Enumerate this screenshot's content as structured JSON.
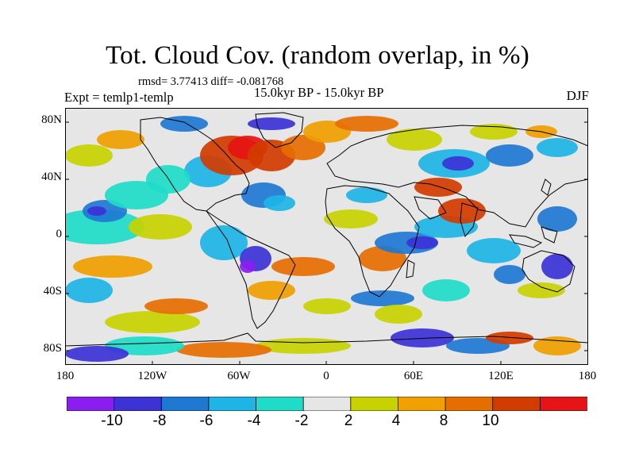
{
  "figure": {
    "title": "Tot. Cloud Cov. (random overlap, in %)",
    "stats": "rmsd= 3.77413 diff= -0.081768",
    "period": "15.0kyr BP - 15.0kyr BP",
    "experiment": "Expt = temlp1-temlp",
    "season": "DJF"
  },
  "map": {
    "lat_labels": [
      "80N",
      "40N",
      "0",
      "40S",
      "80S"
    ],
    "lon_labels": [
      "180",
      "120W",
      "60W",
      "0",
      "60E",
      "120E",
      "180"
    ],
    "lat_values": [
      80,
      40,
      0,
      -40,
      -80
    ],
    "lon_values": [
      -180,
      -120,
      -60,
      0,
      60,
      120,
      180
    ]
  },
  "colorbar": {
    "labels": [
      "-10",
      "-8",
      "-6",
      "-4",
      "-2",
      "2",
      "4",
      "8",
      "10"
    ],
    "colors": [
      "#8a1ef0",
      "#3c32d6",
      "#1e78d2",
      "#1eb4e6",
      "#1edcc8",
      "#e6e6e6",
      "#c8d200",
      "#f0a000",
      "#e66e00",
      "#d23c00",
      "#e61414"
    ]
  }
}
